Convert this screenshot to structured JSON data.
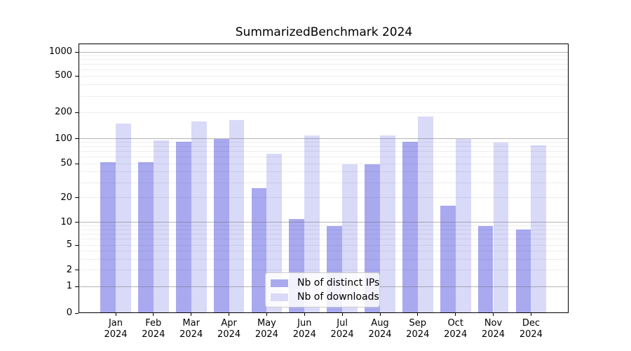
{
  "title": "SummarizedBenchmark 2024",
  "legend": {
    "items": [
      {
        "label": "Nb of distinct IPs",
        "color": "#a9a9f0"
      },
      {
        "label": "Nb of downloads",
        "color": "#d9d9f8"
      }
    ]
  },
  "chart_data": {
    "type": "bar",
    "title": "SummarizedBenchmark 2024",
    "categories": [
      "Jan",
      "Feb",
      "Mar",
      "Apr",
      "May",
      "Jun",
      "Jul",
      "Aug",
      "Sep",
      "Oct",
      "Nov",
      "Dec"
    ],
    "category_year": "2024",
    "series": [
      {
        "name": "Nb of distinct IPs",
        "color": "#a9a9f0",
        "values": [
          52,
          52,
          92,
          100,
          26,
          11,
          9,
          49,
          92,
          16,
          9,
          8
        ]
      },
      {
        "name": "Nb of downloads",
        "color": "#d9d9f8",
        "values": [
          150,
          96,
          158,
          163,
          66,
          108,
          49,
          108,
          180,
          99,
          90,
          83
        ]
      }
    ],
    "xlabel": "",
    "ylabel": "",
    "y_ticks": [
      0,
      1,
      2,
      5,
      10,
      20,
      50,
      100,
      200,
      500,
      1000
    ],
    "y_major_gridlines": [
      1,
      10,
      100,
      1000
    ],
    "y_minor_gridlines": [
      2,
      3,
      4,
      5,
      6,
      7,
      8,
      9,
      20,
      30,
      40,
      50,
      60,
      70,
      80,
      90,
      200,
      300,
      400,
      500,
      600,
      700,
      800,
      900
    ],
    "yscale": "log-like",
    "ylim": [
      0,
      1259
    ],
    "grid": true,
    "legend_position": "lower center"
  }
}
